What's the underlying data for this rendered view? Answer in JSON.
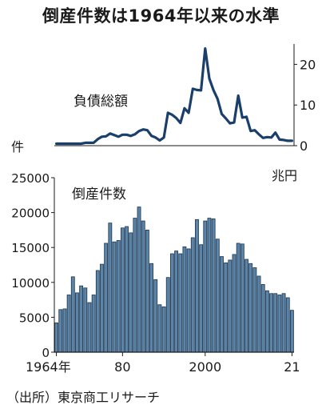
{
  "title": "倒産件数は1964年以来の水準",
  "source": "（出所）東京商工リサーチ",
  "colors": {
    "line": "#1b3f6b",
    "bar_fill": "#5b84a6",
    "bar_stroke": "#1b3451",
    "axis": "#1a1a1a"
  },
  "chart_data": [
    {
      "type": "line",
      "series_label": "負債総額",
      "unit": "兆円",
      "y_axis_position": "right",
      "ylim": [
        0,
        25
      ],
      "yticks": [
        0,
        10,
        20
      ],
      "x": [
        1964,
        1965,
        1966,
        1967,
        1968,
        1969,
        1970,
        1971,
        1972,
        1973,
        1974,
        1975,
        1976,
        1977,
        1978,
        1979,
        1980,
        1981,
        1982,
        1983,
        1984,
        1985,
        1986,
        1987,
        1988,
        1989,
        1990,
        1991,
        1992,
        1993,
        1994,
        1995,
        1996,
        1997,
        1998,
        1999,
        2000,
        2001,
        2002,
        2003,
        2004,
        2005,
        2006,
        2007,
        2008,
        2009,
        2010,
        2011,
        2012,
        2013,
        2014,
        2015,
        2016,
        2017,
        2018,
        2019,
        2020,
        2021
      ],
      "values": [
        0.5,
        0.5,
        0.5,
        0.5,
        0.5,
        0.5,
        0.5,
        0.7,
        0.7,
        0.7,
        1.6,
        2.2,
        2.3,
        3.0,
        2.6,
        2.2,
        2.7,
        2.7,
        2.4,
        2.8,
        3.6,
        4.0,
        3.8,
        2.4,
        2.0,
        1.3,
        2.0,
        8.1,
        7.6,
        6.8,
        5.6,
        9.2,
        8.1,
        14.0,
        13.7,
        13.6,
        23.9,
        16.5,
        13.7,
        11.5,
        7.8,
        6.7,
        5.5,
        5.7,
        12.3,
        6.9,
        7.1,
        3.6,
        3.8,
        2.8,
        1.9,
        2.1,
        2.0,
        3.2,
        1.5,
        1.4,
        1.2,
        1.2
      ]
    },
    {
      "type": "bar",
      "series_label": "倒産件数",
      "unit": "件",
      "y_axis_position": "left",
      "ylim": [
        0,
        25000
      ],
      "yticks": [
        0,
        5000,
        10000,
        15000,
        20000,
        25000
      ],
      "x_tick_labels": [
        {
          "year": 1964,
          "label": "1964年"
        },
        {
          "year": 1980,
          "label": "80"
        },
        {
          "year": 2000,
          "label": "2000"
        },
        {
          "year": 2021,
          "label": "21"
        }
      ],
      "x": [
        1964,
        1965,
        1966,
        1967,
        1968,
        1969,
        1970,
        1971,
        1972,
        1973,
        1974,
        1975,
        1976,
        1977,
        1978,
        1979,
        1980,
        1981,
        1982,
        1983,
        1984,
        1985,
        1986,
        1987,
        1988,
        1989,
        1990,
        1991,
        1992,
        1993,
        1994,
        1995,
        1996,
        1997,
        1998,
        1999,
        2000,
        2001,
        2002,
        2003,
        2004,
        2005,
        2006,
        2007,
        2008,
        2009,
        2010,
        2011,
        2012,
        2013,
        2014,
        2015,
        2016,
        2017,
        2018,
        2019,
        2020,
        2021
      ],
      "values": [
        4200,
        6100,
        6200,
        8200,
        10800,
        8500,
        9500,
        9200,
        7100,
        8200,
        11700,
        12600,
        15600,
        18500,
        15800,
        16000,
        17800,
        18000,
        17100,
        19200,
        20800,
        18800,
        17500,
        12700,
        10400,
        6800,
        6500,
        10700,
        14100,
        14500,
        14100,
        15100,
        14800,
        16400,
        19000,
        15400,
        18800,
        19200,
        19100,
        16200,
        13700,
        12800,
        13200,
        14000,
        15600,
        15500,
        13300,
        12700,
        12100,
        10900,
        9700,
        8800,
        8400,
        8400,
        8200,
        8400,
        7800,
        6000
      ]
    }
  ]
}
